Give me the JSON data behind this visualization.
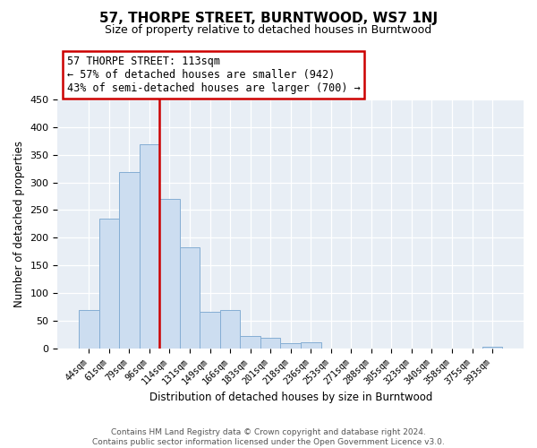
{
  "title": "57, THORPE STREET, BURNTWOOD, WS7 1NJ",
  "subtitle": "Size of property relative to detached houses in Burntwood",
  "xlabel": "Distribution of detached houses by size in Burntwood",
  "ylabel": "Number of detached properties",
  "bin_labels": [
    "44sqm",
    "61sqm",
    "79sqm",
    "96sqm",
    "114sqm",
    "131sqm",
    "149sqm",
    "166sqm",
    "183sqm",
    "201sqm",
    "218sqm",
    "236sqm",
    "253sqm",
    "271sqm",
    "288sqm",
    "305sqm",
    "323sqm",
    "340sqm",
    "358sqm",
    "375sqm",
    "393sqm"
  ],
  "bar_values": [
    70,
    235,
    318,
    368,
    270,
    183,
    67,
    69,
    23,
    19,
    10,
    12,
    0,
    0,
    0,
    0,
    0,
    0,
    0,
    0,
    3
  ],
  "bar_color": "#ccddf0",
  "bar_edge_color": "#85aed4",
  "vline_x_index": 3.5,
  "vline_color": "#cc0000",
  "annotation_title": "57 THORPE STREET: 113sqm",
  "annotation_line1": "← 57% of detached houses are smaller (942)",
  "annotation_line2": "43% of semi-detached houses are larger (700) →",
  "annotation_box_color": "#ffffff",
  "annotation_box_edge": "#cc0000",
  "ylim": [
    0,
    450
  ],
  "footer1": "Contains HM Land Registry data © Crown copyright and database right 2024.",
  "footer2": "Contains public sector information licensed under the Open Government Licence v3.0."
}
